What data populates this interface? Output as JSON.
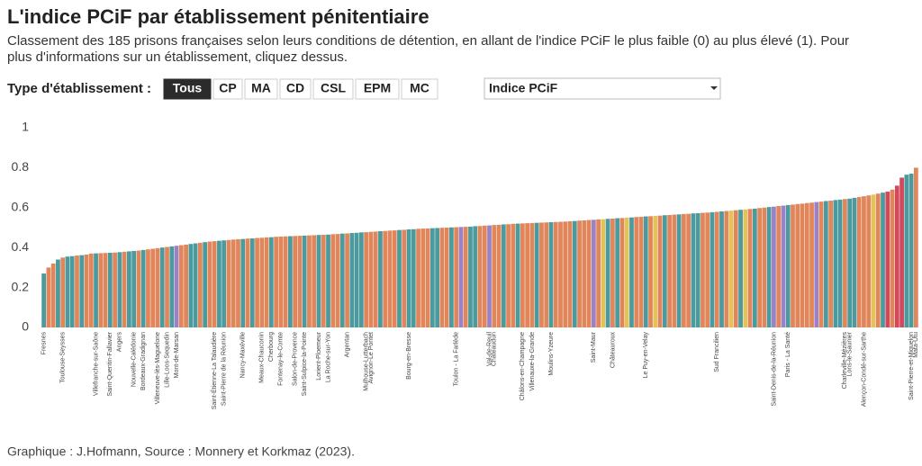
{
  "chart_data": {
    "type": "bar",
    "title": "L'indice PCiF par établissement pénitentiaire",
    "subtitle": [
      "Classement des 185 prisons françaises selon leurs conditions de détention, en allant de l'indice PCiF le plus faible (0) au plus élevé (1). Pour",
      "plus d'informations sur un établissement, cliquez dessus."
    ],
    "filter_label": "Type d'établissement :",
    "filters": [
      "Tous",
      "CP",
      "MA",
      "CD",
      "CSL",
      "EPM",
      "MC"
    ],
    "active_filter": 0,
    "dropdown": "Indice PCiF",
    "footer": "Graphique : J.Hofmann, Source : Monnery et Korkmaz (2023).",
    "ylim": [
      0,
      1
    ],
    "yticks": [
      0,
      0.2,
      0.4,
      0.6,
      0.8,
      1
    ],
    "grid": false,
    "categories": [
      "Fresnes",
      null,
      null,
      null,
      "Toulouse-Seysses",
      null,
      null,
      null,
      null,
      null,
      null,
      "Villefranche-sur-Saône",
      null,
      null,
      "Saint-Quentin-Fallavier",
      null,
      "Angers",
      null,
      null,
      "Nouvelle-Calédonie",
      null,
      "Bordeaux-Gradignan",
      null,
      null,
      "Villeneuve-lès-Maguelone",
      null,
      "Lille-Loos-Sequedin",
      null,
      "Mont-de-Marsan",
      null,
      null,
      null,
      null,
      null,
      null,
      null,
      "Saint-Étienne-La Talaudière",
      null,
      "Saint-Pierre de la Réunion",
      null,
      null,
      null,
      "Nancy-Maxéville",
      null,
      null,
      null,
      "Meaux-Chauconin",
      null,
      "Cherbourg",
      null,
      "Fontenay-le-Comte",
      null,
      null,
      "Salon-de-Provence",
      null,
      "Saint-Sulpice-la-Pointe",
      null,
      null,
      "Lorient-Ploemeur",
      null,
      "La Roche-sur-Yon",
      null,
      null,
      null,
      "Argentan",
      null,
      null,
      null,
      "Mulhouse-Lutterbach",
      "Avignon-Le Pontet",
      null,
      null,
      null,
      null,
      null,
      null,
      null,
      "Bourg-en-Bresse",
      null,
      null,
      null,
      null,
      null,
      null,
      null,
      null,
      null,
      "Toulon - La Farlède",
      null,
      null,
      null,
      null,
      null,
      null,
      "Val-de-Reuil",
      "Châteaudun",
      null,
      null,
      null,
      null,
      null,
      "Châlons-en-Champagne",
      null,
      "Villenauxe-la-Grande",
      null,
      null,
      null,
      "Moulins-Yzeure",
      null,
      null,
      null,
      null,
      null,
      null,
      null,
      null,
      "Saint-Maur",
      null,
      null,
      null,
      "Châteauroux",
      null,
      null,
      null,
      null,
      null,
      null,
      "Le Puy-en-Velay",
      null,
      null,
      null,
      null,
      null,
      null,
      null,
      null,
      null,
      null,
      null,
      null,
      null,
      null,
      "Sud Francilien",
      null,
      null,
      null,
      null,
      null,
      null,
      null,
      null,
      null,
      null,
      null,
      "Saint-Denis-de-la-Réunion",
      null,
      null,
      "Paris - La Santé",
      null,
      null,
      null,
      null,
      null,
      null,
      null,
      null,
      null,
      null,
      null,
      "Charleville-Mézières",
      "Lons-le-Saunier",
      null,
      null,
      "Alençon-Condé-sur-Sarthe",
      null,
      null,
      null,
      null,
      null,
      null,
      null,
      null,
      null,
      "Saint-Pierre-et-Miquelon",
      "Mata-Utu"
    ],
    "values": [
      0.27,
      0.3,
      0.32,
      0.34,
      0.35,
      0.355,
      0.357,
      0.36,
      0.362,
      0.365,
      0.37,
      0.371,
      0.372,
      0.373,
      0.374,
      0.375,
      0.377,
      0.379,
      0.381,
      0.383,
      0.385,
      0.388,
      0.391,
      0.394,
      0.397,
      0.4,
      0.403,
      0.406,
      0.409,
      0.412,
      0.415,
      0.418,
      0.421,
      0.424,
      0.427,
      0.43,
      0.432,
      0.434,
      0.436,
      0.438,
      0.44,
      0.442,
      0.443,
      0.445,
      0.446,
      0.448,
      0.449,
      0.451,
      0.452,
      0.454,
      0.455,
      0.456,
      0.457,
      0.458,
      0.459,
      0.46,
      0.461,
      0.462,
      0.463,
      0.464,
      0.465,
      0.467,
      0.468,
      0.47,
      0.471,
      0.473,
      0.474,
      0.476,
      0.477,
      0.479,
      0.48,
      0.482,
      0.483,
      0.485,
      0.486,
      0.488,
      0.489,
      0.491,
      0.492,
      0.494,
      0.495,
      0.496,
      0.497,
      0.498,
      0.499,
      0.5,
      0.501,
      0.502,
      0.503,
      0.504,
      0.505,
      0.507,
      0.508,
      0.51,
      0.511,
      0.513,
      0.514,
      0.516,
      0.517,
      0.519,
      0.52,
      0.521,
      0.522,
      0.523,
      0.524,
      0.525,
      0.526,
      0.527,
      0.528,
      0.529,
      0.53,
      0.532,
      0.533,
      0.535,
      0.536,
      0.538,
      0.539,
      0.541,
      0.542,
      0.544,
      0.545,
      0.547,
      0.548,
      0.55,
      0.551,
      0.553,
      0.554,
      0.556,
      0.557,
      0.559,
      0.56,
      0.562,
      0.563,
      0.565,
      0.566,
      0.568,
      0.569,
      0.571,
      0.572,
      0.574,
      0.575,
      0.577,
      0.579,
      0.581,
      0.583,
      0.585,
      0.587,
      0.589,
      0.591,
      0.593,
      0.595,
      0.598,
      0.6,
      0.603,
      0.605,
      0.608,
      0.61,
      0.613,
      0.615,
      0.618,
      0.62,
      0.623,
      0.625,
      0.628,
      0.63,
      0.633,
      0.635,
      0.638,
      0.64,
      0.643,
      0.645,
      0.649,
      0.653,
      0.657,
      0.661,
      0.665,
      0.67,
      0.675,
      0.68,
      0.69,
      0.71,
      0.75,
      0.765,
      0.77,
      0.8
    ],
    "colors": [
      "#4a9a9e",
      "#e0865a",
      "#e0865a",
      "#4a9a9e",
      "#e0865a",
      "#4a9a9e",
      "#4a9a9e",
      "#e0865a",
      "#4a9a9e",
      "#e0865a",
      "#e0865a",
      "#4a9a9e",
      "#e0865a",
      "#e0865a",
      "#4a9a9e",
      "#e0865a",
      "#4a9a9e",
      "#e0865a",
      "#4a9a9e",
      "#4a9a9e",
      "#e0865a",
      "#4a9a9e",
      "#e0865a",
      "#e0865a",
      "#e0865a",
      "#4a9a9e",
      "#e0865a",
      "#4a9a9e",
      "#9b82c6",
      "#e0865a",
      "#e0865a",
      "#4a9a9e",
      "#4a9a9e",
      "#e0865a",
      "#4a9a9e",
      "#e0865a",
      "#e0865a",
      "#4a9a9e",
      "#4a9a9e",
      "#e0865a",
      "#e0865a",
      "#e0865a",
      "#4a9a9e",
      "#e0865a",
      "#4a9a9e",
      "#e0865a",
      "#e0865a",
      "#e0865a",
      "#4a9a9e",
      "#e0865a",
      "#e0865a",
      "#e0865a",
      "#4a9a9e",
      "#e0865a",
      "#e0865a",
      "#4a9a9e",
      "#e0865a",
      "#e0865a",
      "#4a9a9e",
      "#e0865a",
      "#4a9a9e",
      "#e0865a",
      "#e0865a",
      "#4a9a9e",
      "#e0865a",
      "#4a9a9e",
      "#4a9a9e",
      "#4a9a9e",
      "#e0865a",
      "#e0865a",
      "#e0865a",
      "#4a9a9e",
      "#e0865a",
      "#e0865a",
      "#e0865a",
      "#4a9a9e",
      "#e0865a",
      "#4a9a9e",
      "#4a9a9e",
      "#e0865a",
      "#e0865a",
      "#e0865a",
      "#4a9a9e",
      "#4a9a9e",
      "#e0865a",
      "#e0865a",
      "#4a9a9e",
      "#e0865a",
      "#9b82c6",
      "#e0865a",
      "#4a9a9e",
      "#4a9a9e",
      "#e0865a",
      "#e0865a",
      "#9b82c6",
      "#e0865a",
      "#e0865a",
      "#4a9a9e",
      "#e0865a",
      "#e0865a",
      "#4a9a9e",
      "#e0865a",
      "#e0865a",
      "#e0865a",
      "#4a9a9e",
      "#e0865a",
      "#e0865a",
      "#4a9a9e",
      "#e0865a",
      "#e0865a",
      "#e0865a",
      "#e0865a",
      "#4a9a9e",
      "#e0865a",
      "#e0865a",
      "#e0865a",
      "#9b82c6",
      "#e0865a",
      "#e3c25c",
      "#4a9a9e",
      "#e0865a",
      "#4a9a9e",
      "#e0865a",
      "#e3c25c",
      "#4a9a9e",
      "#e0865a",
      "#e0865a",
      "#4a9a9e",
      "#e0865a",
      "#e3c25c",
      "#e0865a",
      "#4a9a9e",
      "#e0865a",
      "#e0865a",
      "#4a9a9e",
      "#e0865a",
      "#e0865a",
      "#4a9a9e",
      "#4a9a9e",
      "#e0865a",
      "#e0865a",
      "#4a9a9e",
      "#e0865a",
      "#4a9a9e",
      "#e0865a",
      "#e3c25c",
      "#e0865a",
      "#4a9a9e",
      "#e3c25c",
      "#e0865a",
      "#4a9a9e",
      "#e0865a",
      "#e0865a",
      "#4a9a9e",
      "#9b82c6",
      "#e0865a",
      "#9b82c6",
      "#4a9a9e",
      "#e0865a",
      "#e0865a",
      "#e0865a",
      "#e0865a",
      "#e0865a",
      "#9b82c6",
      "#e0865a",
      "#4a9a9e",
      "#e0865a",
      "#4a9a9e",
      "#4a9a9e",
      "#e0865a",
      "#4a9a9e",
      "#4a9a9e",
      "#e0865a",
      "#e0865a",
      "#e0865a",
      "#e3c25c",
      "#e0865a",
      "#4a9a9e",
      "#d1495b",
      "#e0865a",
      "#d1495b",
      "#d1495b",
      "#4a9a9e",
      "#4a9a9e",
      "#e0865a"
    ]
  }
}
